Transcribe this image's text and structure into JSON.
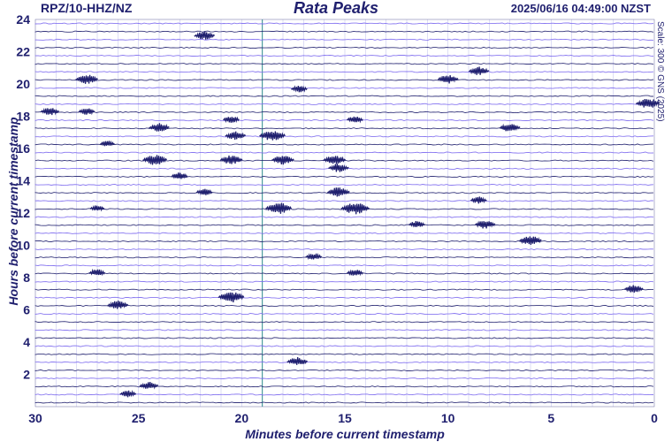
{
  "header": {
    "station": "RPZ/10-HHZ/NZ",
    "title": "Rata Peaks",
    "timestamp": "2025/06/16 04:49:00 NZST",
    "scale_note": "Scale: 300 © GNS (2025)"
  },
  "colors": {
    "trace_primary": "#1f1f6e",
    "trace_secondary": "#7b68ee",
    "grid": "#c8c8f0",
    "current_minute_line": "#2e8b8b",
    "axis_text": "#1f1f6e"
  },
  "chart_data": {
    "type": "line",
    "subtype": "helicorder",
    "xlabel": "Minutes before current timestamp",
    "ylabel": "Hours before current timestamp",
    "xlim": [
      30,
      0
    ],
    "ylim": [
      0,
      24
    ],
    "x_ticks": [
      30,
      25,
      20,
      15,
      10,
      5,
      0
    ],
    "y_ticks": [
      2,
      4,
      6,
      8,
      10,
      12,
      14,
      16,
      18,
      20,
      22,
      24
    ],
    "grid": true,
    "vertical_marker_minute": 19,
    "rows_per_hour": 2,
    "events": [
      {
        "hour": 23.0,
        "minute": 21.8,
        "amp": 0.6
      },
      {
        "hour": 20.8,
        "minute": 8.5,
        "amp": 0.6
      },
      {
        "hour": 20.3,
        "minute": 27.5,
        "amp": 0.7
      },
      {
        "hour": 20.3,
        "minute": 10.0,
        "amp": 0.6
      },
      {
        "hour": 19.7,
        "minute": 17.2,
        "amp": 0.4
      },
      {
        "hour": 18.8,
        "minute": 0.3,
        "amp": 0.8
      },
      {
        "hour": 18.3,
        "minute": 29.3,
        "amp": 0.5
      },
      {
        "hour": 18.3,
        "minute": 27.5,
        "amp": 0.4
      },
      {
        "hour": 17.8,
        "minute": 20.5,
        "amp": 0.4
      },
      {
        "hour": 17.8,
        "minute": 14.5,
        "amp": 0.4
      },
      {
        "hour": 17.3,
        "minute": 24.0,
        "amp": 0.6
      },
      {
        "hour": 17.3,
        "minute": 7.0,
        "amp": 0.6
      },
      {
        "hour": 16.8,
        "minute": 18.5,
        "amp": 0.9
      },
      {
        "hour": 16.8,
        "minute": 20.3,
        "amp": 0.6
      },
      {
        "hour": 16.3,
        "minute": 26.5,
        "amp": 0.3
      },
      {
        "hour": 15.3,
        "minute": 24.2,
        "amp": 0.8
      },
      {
        "hour": 15.3,
        "minute": 20.5,
        "amp": 0.7
      },
      {
        "hour": 15.3,
        "minute": 18.0,
        "amp": 0.7
      },
      {
        "hour": 15.3,
        "minute": 15.5,
        "amp": 0.7
      },
      {
        "hour": 14.8,
        "minute": 15.3,
        "amp": 0.6
      },
      {
        "hour": 14.3,
        "minute": 23.0,
        "amp": 0.4
      },
      {
        "hour": 13.3,
        "minute": 21.8,
        "amp": 0.4
      },
      {
        "hour": 13.3,
        "minute": 15.3,
        "amp": 0.7
      },
      {
        "hour": 12.8,
        "minute": 8.5,
        "amp": 0.4
      },
      {
        "hour": 12.3,
        "minute": 18.2,
        "amp": 0.9
      },
      {
        "hour": 12.3,
        "minute": 14.5,
        "amp": 1.0
      },
      {
        "hour": 12.3,
        "minute": 27.0,
        "amp": 0.3
      },
      {
        "hour": 11.3,
        "minute": 8.2,
        "amp": 0.6
      },
      {
        "hour": 11.3,
        "minute": 11.5,
        "amp": 0.4
      },
      {
        "hour": 10.3,
        "minute": 6.0,
        "amp": 0.7
      },
      {
        "hour": 9.3,
        "minute": 16.5,
        "amp": 0.4
      },
      {
        "hour": 8.3,
        "minute": 27.0,
        "amp": 0.4
      },
      {
        "hour": 8.3,
        "minute": 14.5,
        "amp": 0.4
      },
      {
        "hour": 7.3,
        "minute": 1.0,
        "amp": 0.5
      },
      {
        "hour": 6.8,
        "minute": 20.5,
        "amp": 0.9
      },
      {
        "hour": 6.3,
        "minute": 26.0,
        "amp": 0.6
      },
      {
        "hour": 2.8,
        "minute": 17.3,
        "amp": 0.6
      },
      {
        "hour": 1.3,
        "minute": 24.5,
        "amp": 0.5
      },
      {
        "hour": 0.8,
        "minute": 25.5,
        "amp": 0.4
      }
    ]
  }
}
